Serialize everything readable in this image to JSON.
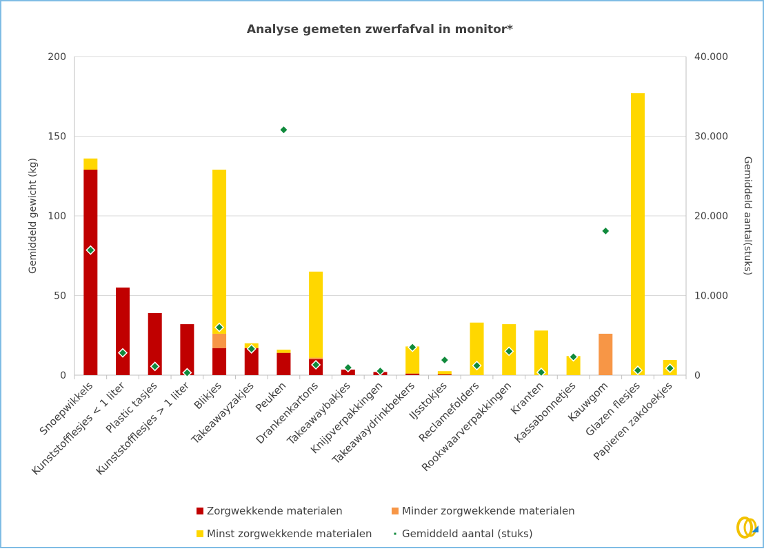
{
  "chart_data": {
    "type": "bar",
    "stacked": true,
    "title": "Analyse gemeten zwerfafval in monitor*",
    "y_label": "Gemiddeld gewicht (kg)",
    "y2_label": "Gemiddeld aantal(stuks)",
    "categories": [
      "Snoepwikkels",
      "Kunststofflesjes < 1 liter",
      "Plastic tasjes",
      "Kunststofflesjes > 1 liter",
      "Blikjes",
      "Takeawayzakjes",
      "Peuken",
      "Drankenkartons",
      "Takeawaybakjes",
      "Knijpverpakkingen",
      "Takeawaydrinkbekers",
      "IJsstokjes",
      "Reclamefolders",
      "Rookwaarverpakkingen",
      "Kranten",
      "Kassabonnetjes",
      "Kauwgom",
      "Glazen flesjes",
      "Papieren zakdoekjes"
    ],
    "series": [
      {
        "name": "Zorgwekkende materialen",
        "color": "#c00000",
        "values": [
          129,
          55,
          39,
          32,
          17,
          17,
          14,
          10,
          3.5,
          2,
          1,
          0.5,
          0,
          0,
          0,
          0,
          0,
          0,
          0
        ]
      },
      {
        "name": "Minder zorgwekkende materialen",
        "color": "#f79646",
        "values": [
          0,
          0,
          0,
          0,
          9,
          0,
          0,
          1,
          0,
          0,
          0,
          0,
          0,
          0,
          0,
          0,
          26,
          0,
          0
        ]
      },
      {
        "name": "Minst zorgwekkende materialen",
        "color": "#ffd700",
        "values": [
          7,
          0,
          0,
          0,
          103,
          3,
          2,
          54,
          0,
          0,
          17,
          2,
          33,
          32,
          28,
          12,
          0,
          177,
          9.5
        ]
      },
      {
        "name": "Gemiddeld aantal (stuks)",
        "type": "scatter",
        "axis": "y2",
        "color": "#108a3c",
        "values": [
          15700,
          2800,
          1100,
          300,
          6000,
          3300,
          30800,
          1300,
          950,
          520,
          3500,
          1900,
          1200,
          3000,
          350,
          2300,
          18100,
          600,
          870
        ]
      }
    ],
    "ylim": [
      0,
      200
    ],
    "yticks": [
      0,
      50,
      100,
      150,
      200
    ],
    "y2lim": [
      0,
      40000
    ],
    "y2ticks": [
      0,
      {
        "value": 10000,
        "label": "10.000"
      },
      {
        "value": 20000,
        "label": "20.000"
      },
      {
        "value": 30000,
        "label": "30.000"
      },
      {
        "value": 40000,
        "label": "40.000"
      }
    ],
    "grid": true,
    "legend": "bottom"
  }
}
